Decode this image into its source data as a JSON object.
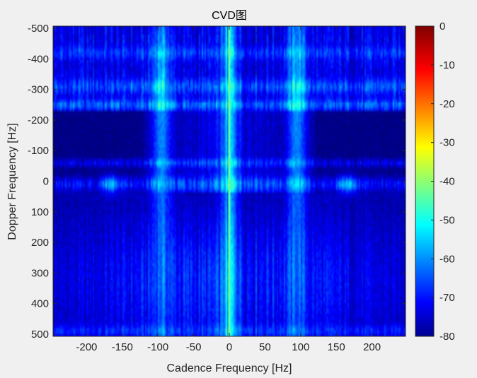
{
  "chart_data": {
    "type": "heatmap",
    "title": "CVD图",
    "xlabel": "Cadence Frequency [Hz]",
    "ylabel": "Dopper Frequency [Hz]",
    "xlim": [
      -247,
      247
    ],
    "ylim": [
      -507,
      507
    ],
    "y_reversed": true,
    "x_ticks": [
      -200,
      -150,
      -100,
      -50,
      0,
      50,
      100,
      150,
      200
    ],
    "x_tick_labels": [
      "-200",
      "-150",
      "-100",
      "-50",
      "0",
      "50",
      "100",
      "150",
      "200"
    ],
    "y_ticks": [
      -500,
      -400,
      -300,
      -200,
      -100,
      0,
      100,
      200,
      300,
      400,
      500
    ],
    "y_tick_labels": [
      "-500",
      "-400",
      "-300",
      "-200",
      "-100",
      "0",
      "100",
      "200",
      "300",
      "400",
      "500"
    ],
    "colorbar": {
      "colormap": "jet",
      "range": [
        -80,
        0
      ],
      "ticks": [
        0,
        -10,
        -20,
        -30,
        -40,
        -50,
        -60,
        -70,
        -80
      ],
      "tick_labels": [
        "0",
        "-10",
        "-20",
        "-30",
        "-40",
        "-50",
        "-60",
        "-70",
        "-80"
      ]
    },
    "features": [
      {
        "kind": "vertical_line",
        "x": 0,
        "level_db": -42
      },
      {
        "kind": "vertical_band",
        "x_center": -95,
        "level_db": -55
      },
      {
        "kind": "vertical_band",
        "x_center": 95,
        "level_db": -55
      },
      {
        "kind": "horizontal_band",
        "y_center": 0,
        "level_db": -60
      },
      {
        "kind": "hotspot",
        "x": -165,
        "y": 0,
        "level_db": -55
      },
      {
        "kind": "hotspot",
        "x": 165,
        "y": 0,
        "level_db": -55
      }
    ]
  }
}
